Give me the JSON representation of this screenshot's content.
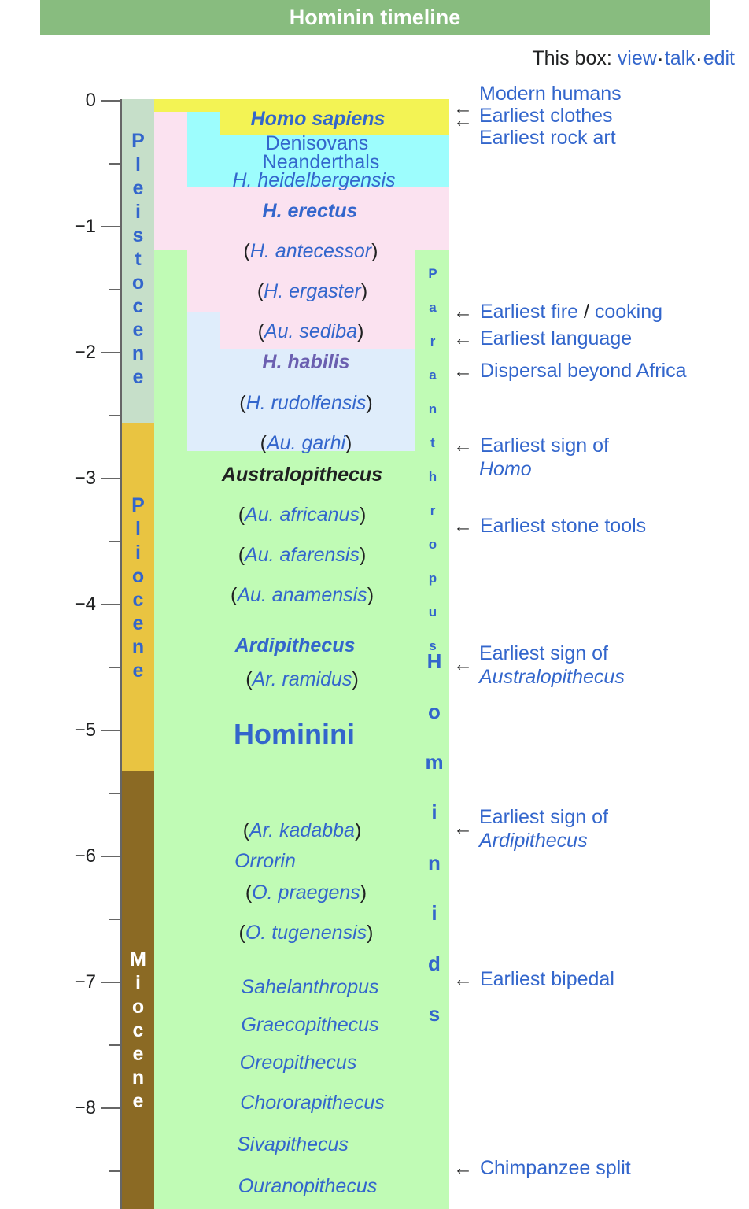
{
  "title": "Hominin timeline",
  "box_links": {
    "prefix": "This box:",
    "view": "view",
    "talk": "talk",
    "edit": "edit"
  },
  "axis": {
    "unit": "million years",
    "ticks": [
      "0",
      "−1",
      "−2",
      "−3",
      "−4",
      "−5",
      "−6",
      "−7",
      "−8"
    ],
    "range": [
      -8.8,
      0
    ]
  },
  "epochs": [
    {
      "name": "Pleistocene",
      "letters": [
        "P",
        "l",
        "e",
        "i",
        "s",
        "t",
        "o",
        "c",
        "e",
        "n",
        "e"
      ],
      "from": -2.58,
      "to": 0,
      "color": "#c6dfc9",
      "text_color": "#3366cc"
    },
    {
      "name": "Pliocene",
      "letters": [
        "P",
        "l",
        "i",
        "o",
        "c",
        "e",
        "n",
        "e"
      ],
      "from": -5.33,
      "to": -2.58,
      "color": "#e9c441",
      "text_color": "#3366cc"
    },
    {
      "name": "Miocene",
      "letters": [
        "M",
        "i",
        "o",
        "c",
        "e",
        "n",
        "e"
      ],
      "from": -8.8,
      "to": -5.33,
      "color": "#8b6a24",
      "text_color": "#ffffff"
    }
  ],
  "colors": {
    "homo_sapiens": "#f3f354",
    "denisovans_neanderthals": "#9dfdfd",
    "erectus_pink": "#fbe2f0",
    "habilis_blue": "#dfedfb",
    "hominini_green": "#c0fbb5",
    "link": "#3366cc",
    "title_bar": "#88bc7f"
  },
  "taxa": {
    "homo_sapiens": "Homo sapiens",
    "denisovans": "Denisovans",
    "neanderthals": "Neanderthals",
    "heidelbergensis": "H. heidelbergensis",
    "erectus": "H. erectus",
    "antecessor": "H. antecessor",
    "ergaster": "H. ergaster",
    "sediba": "Au. sediba",
    "habilis": "H. habilis",
    "rudolfensis": "H. rudolfensis",
    "garhi": "Au. garhi",
    "australopithecus": "Australopithecus",
    "africanus": "Au. africanus",
    "afarensis": "Au. afarensis",
    "anamensis": "Au. anamensis",
    "ardipithecus": "Ardipithecus",
    "ramidus": "Ar. ramidus",
    "hominini": "Hominini",
    "kadabba": "Ar. kadabba",
    "orrorin": "Orrorin",
    "praegens": "O. praegens",
    "tugenensis": "O. tugenensis",
    "sahelanthropus": "Sahelanthropus",
    "graecopithecus": "Graecopithecus",
    "oreopithecus": "Oreopithecus",
    "chororapithecus": "Chororapithecus",
    "sivapithecus": "Sivapithecus",
    "ouranopithecus": "Ouranopithecus",
    "open_paren": "(",
    "close_paren": ")"
  },
  "vertical_labels": {
    "paranthropus": [
      "P",
      "a",
      "r",
      "a",
      "n",
      "t",
      "h",
      "r",
      "o",
      "p",
      "u",
      "s"
    ],
    "hominids": [
      "H",
      "o",
      "m",
      "i",
      "n",
      "i",
      "d",
      "s"
    ]
  },
  "events": {
    "modern_humans": "Modern humans",
    "earliest_clothes": "Earliest clothes",
    "earliest_rock_art": "Earliest rock art",
    "earliest_fire": "Earliest fire",
    "fire_sep": "/",
    "cooking": "cooking",
    "earliest_language": "Earliest language",
    "dispersal": "Dispersal beyond Africa",
    "earliest_sign_of": "Earliest sign of",
    "homo": "Homo",
    "earliest_stone_tools": "Earliest stone tools",
    "australopithecus": "Australopithecus",
    "ardipithecus": "Ardipithecus",
    "earliest_bipedal": "Earliest bipedal",
    "chimpanzee_split": "Chimpanzee split",
    "arrow": "←"
  }
}
